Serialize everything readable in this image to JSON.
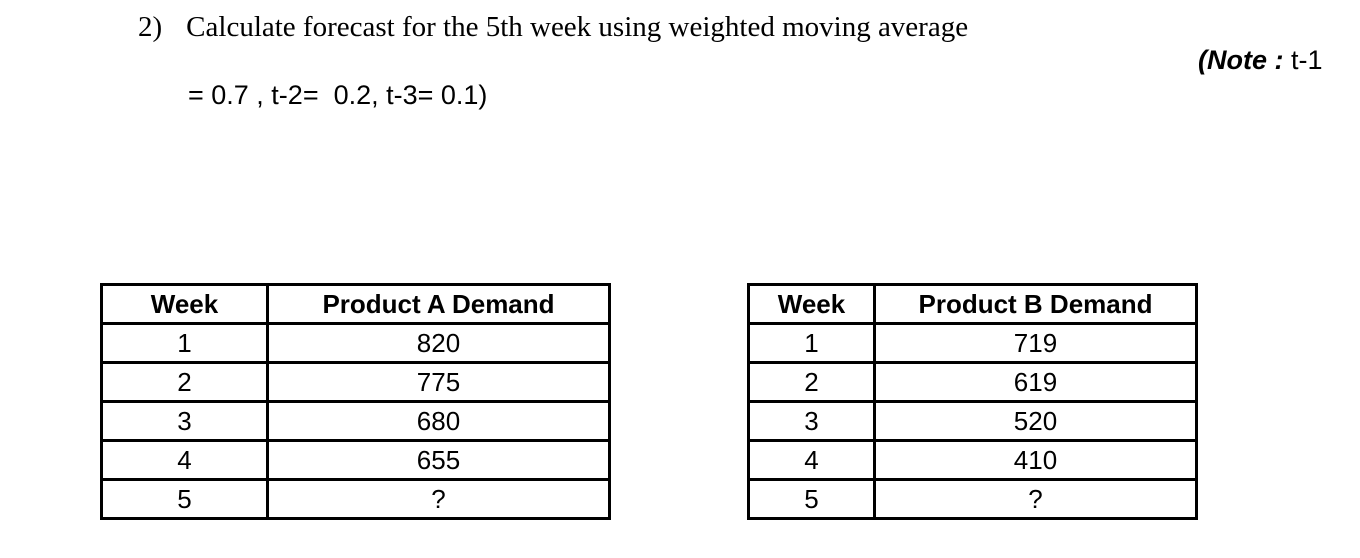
{
  "question": {
    "number": "2)",
    "text": "Calculate forecast for the 5th week using weighted moving average",
    "note_bold": "(Note :",
    "note_rest": " t-1",
    "weights_line": "= 0.7 , t-2=  0.2, t-3= 0.1)"
  },
  "tables": [
    {
      "headers": [
        "Week",
        "Product A Demand"
      ],
      "rows": [
        [
          "1",
          "820"
        ],
        [
          "2",
          "775"
        ],
        [
          "3",
          "680"
        ],
        [
          "4",
          "655"
        ],
        [
          "5",
          "?"
        ]
      ]
    },
    {
      "headers": [
        "Week",
        "Product B Demand"
      ],
      "rows": [
        [
          "1",
          "719"
        ],
        [
          "2",
          "619"
        ],
        [
          "3",
          "520"
        ],
        [
          "4",
          "410"
        ],
        [
          "5",
          "?"
        ]
      ]
    }
  ]
}
